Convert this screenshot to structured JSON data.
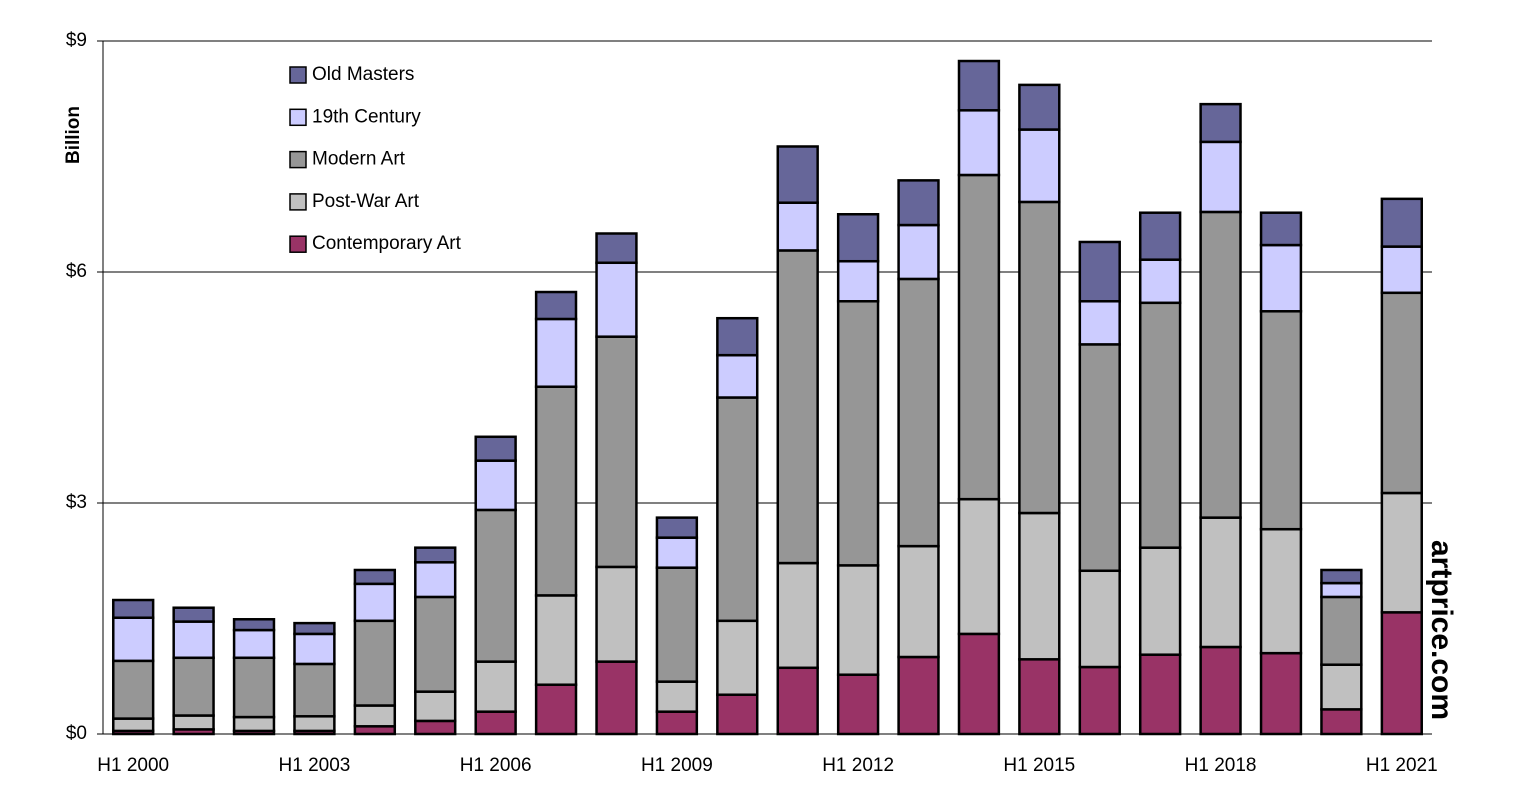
{
  "chart_data": {
    "type": "stacked_bar",
    "y_label": "Billion",
    "watermark": "artprice.com",
    "categories": [
      "H1 2000",
      null,
      null,
      "H1 2003",
      null,
      null,
      "H1 2006",
      null,
      null,
      "H1 2009",
      null,
      null,
      "H1 2012",
      null,
      null,
      "H1 2015",
      null,
      null,
      "H1 2018",
      null,
      null,
      "H1 2021"
    ],
    "series": [
      {
        "name": "Contemporary Art",
        "color": "#993366",
        "values": [
          0.04,
          0.06,
          0.04,
          0.04,
          0.1,
          0.17,
          0.29,
          0.64,
          0.94,
          0.29,
          0.51,
          0.86,
          0.77,
          1.0,
          1.3,
          0.97,
          0.87,
          1.03,
          1.13,
          1.05,
          0.32,
          1.58
        ]
      },
      {
        "name": "Post-War Art",
        "color": "#c0c0c0",
        "values": [
          0.16,
          0.18,
          0.18,
          0.19,
          0.27,
          0.38,
          0.65,
          1.16,
          1.23,
          0.39,
          0.96,
          1.36,
          1.42,
          1.44,
          1.75,
          1.9,
          1.25,
          1.39,
          1.68,
          1.61,
          0.58,
          1.55
        ]
      },
      {
        "name": "Modern Art",
        "color": "#969696",
        "values": [
          0.75,
          0.75,
          0.77,
          0.68,
          1.1,
          1.23,
          1.97,
          2.71,
          2.99,
          1.48,
          2.9,
          4.06,
          3.43,
          3.47,
          4.21,
          4.04,
          2.94,
          3.18,
          3.97,
          2.83,
          0.88,
          2.6
        ]
      },
      {
        "name": "19th Century",
        "color": "#ccccff",
        "values": [
          0.56,
          0.47,
          0.36,
          0.39,
          0.48,
          0.45,
          0.64,
          0.88,
          0.96,
          0.39,
          0.55,
          0.62,
          0.52,
          0.7,
          0.84,
          0.94,
          0.56,
          0.56,
          0.91,
          0.86,
          0.18,
          0.6
        ]
      },
      {
        "name": "Old Masters",
        "color": "#666699",
        "values": [
          0.23,
          0.18,
          0.14,
          0.14,
          0.18,
          0.19,
          0.31,
          0.35,
          0.38,
          0.26,
          0.48,
          0.73,
          0.61,
          0.58,
          0.64,
          0.58,
          0.77,
          0.61,
          0.49,
          0.42,
          0.17,
          0.62
        ]
      }
    ],
    "ylim": [
      0,
      9
    ],
    "yticks": [
      {
        "value": 0,
        "label": "$0"
      },
      {
        "value": 3,
        "label": "$3"
      },
      {
        "value": 6,
        "label": "$6"
      },
      {
        "value": 9,
        "label": "$9"
      }
    ],
    "grid": true,
    "legend": "upper-left"
  }
}
